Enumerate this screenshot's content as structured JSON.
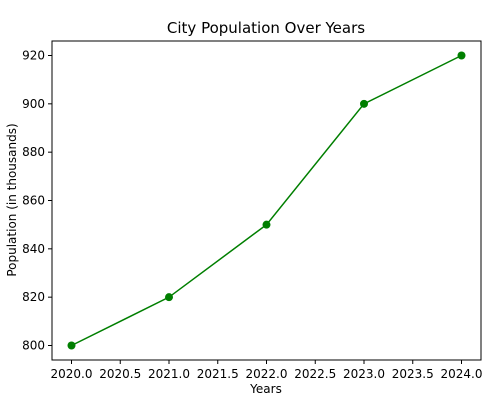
{
  "chart_data": {
    "type": "line",
    "title": "City Population Over Years",
    "xlabel": "Years",
    "ylabel": "Population (in thousands)",
    "x": [
      2020,
      2021,
      2022,
      2023,
      2024
    ],
    "series": [
      {
        "values": [
          800,
          820,
          850,
          900,
          920
        ],
        "color": "#007f00",
        "marker": "circle"
      }
    ],
    "xlim": [
      2019.8,
      2024.2
    ],
    "ylim": [
      794,
      926
    ],
    "xticks": [
      "2020.0",
      "2020.5",
      "2021.0",
      "2021.5",
      "2022.0",
      "2022.5",
      "2023.0",
      "2023.5",
      "2024.0"
    ],
    "yticks": [
      "800",
      "820",
      "840",
      "860",
      "880",
      "900",
      "920"
    ],
    "grid": false,
    "legend": false
  }
}
